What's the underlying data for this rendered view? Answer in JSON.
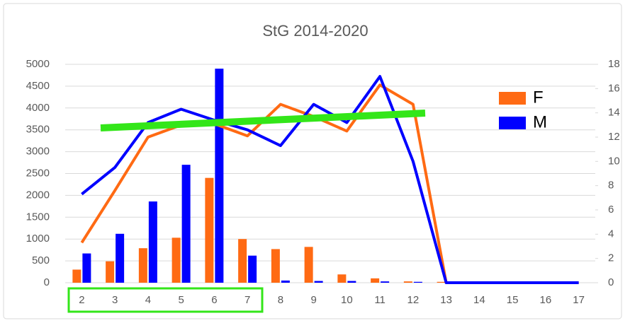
{
  "chart_data": {
    "type": "bar",
    "title": "StG 2014-2020",
    "categories": [
      "2",
      "3",
      "4",
      "5",
      "6",
      "7",
      "8",
      "9",
      "10",
      "11",
      "12",
      "13",
      "14",
      "15",
      "16",
      "17"
    ],
    "series": [
      {
        "name": "F",
        "color": "#ff6a13",
        "values": [
          300,
          490,
          790,
          1030,
          2400,
          1000,
          770,
          820,
          190,
          100,
          30,
          20,
          0,
          0,
          0,
          0
        ]
      },
      {
        "name": "M",
        "color": "#0000ff",
        "values": [
          670,
          1120,
          1860,
          2700,
          4900,
          620,
          50,
          40,
          40,
          30,
          20,
          0,
          0,
          0,
          0,
          0
        ]
      },
      {
        "type": "line",
        "axis": "y2",
        "color": "#ff6a13",
        "values": [
          3.3,
          7.6,
          12.0,
          13.0,
          13.1,
          12.1,
          14.7,
          13.7,
          12.5,
          16.3,
          14.7,
          0,
          0,
          0,
          0,
          0
        ]
      },
      {
        "type": "line",
        "axis": "y2",
        "color": "#0000ff",
        "values": [
          7.3,
          9.5,
          13.2,
          14.3,
          13.4,
          12.6,
          11.3,
          14.7,
          13.2,
          17.0,
          10.0,
          0,
          0,
          0,
          0,
          0
        ]
      }
    ],
    "ylim": [
      0,
      5000
    ],
    "yticks": [
      0,
      500,
      1000,
      1500,
      2000,
      2500,
      3000,
      3500,
      4000,
      4500,
      5000
    ],
    "y2lim": [
      0,
      18
    ],
    "y2ticks": [
      0,
      2,
      4,
      6,
      8,
      10,
      12,
      14,
      16,
      18
    ],
    "grid": true,
    "legend": "right"
  }
}
